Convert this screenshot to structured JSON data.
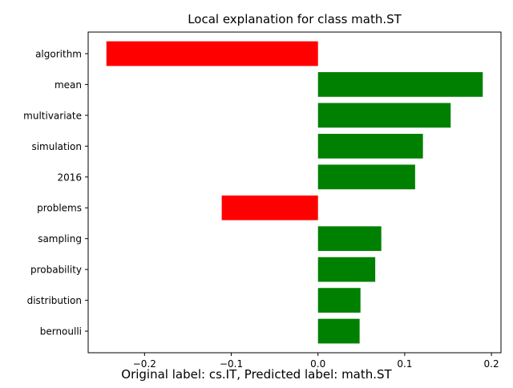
{
  "chart_data": {
    "type": "bar",
    "orientation": "horizontal",
    "title": "Local explanation for class math.ST",
    "categories": [
      "algorithm",
      "mean",
      "multivariate",
      "simulation",
      "2016",
      "problems",
      "sampling",
      "probability",
      "distribution",
      "bernoulli"
    ],
    "values": [
      -0.244,
      0.19,
      0.153,
      0.121,
      0.112,
      -0.111,
      0.073,
      0.066,
      0.049,
      0.048
    ],
    "xlim": [
      -0.265,
      0.211
    ],
    "xticks": [
      -0.2,
      -0.1,
      0.0,
      0.1,
      0.2
    ],
    "xtick_labels": [
      "−0.2",
      "−0.1",
      "0.0",
      "0.1",
      "0.2"
    ],
    "grid": false,
    "colors": {
      "positive": "#008000",
      "negative": "#ff0000"
    }
  },
  "caption": "Original label: cs.IT, Predicted label: math.ST"
}
